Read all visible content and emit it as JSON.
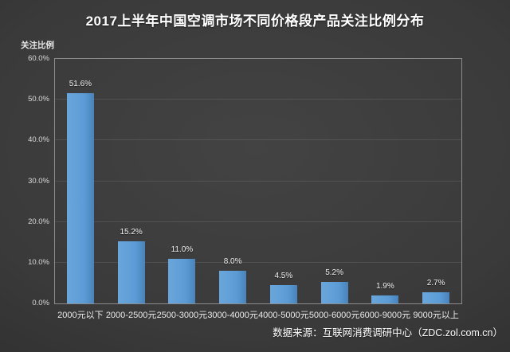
{
  "header": {
    "title": "2017上半年中国空调市场不同价格段产品关注比例分布"
  },
  "chart_data": {
    "type": "bar",
    "title": "2017上半年中国空调市场不同价格段产品关注比例分布",
    "ylabel": "关注比例",
    "xlabel": "",
    "categories": [
      "2000元以下",
      "2000-2500元",
      "2500-3000元",
      "3000-4000元",
      "4000-5000元",
      "5000-6000元",
      "6000-9000元",
      "9000元以上"
    ],
    "values": [
      51.6,
      15.2,
      11.0,
      8.0,
      4.5,
      5.2,
      1.9,
      2.7
    ],
    "value_labels": [
      "51.6%",
      "15.2%",
      "11.0%",
      "8.0%",
      "4.5%",
      "5.2%",
      "1.9%",
      "2.7%"
    ],
    "ylim": [
      0,
      60
    ],
    "ytick_step": 10,
    "ytick_labels": [
      "0.0%",
      "10.0%",
      "20.0%",
      "30.0%",
      "40.0%",
      "50.0%",
      "60.0%"
    ],
    "grid": true,
    "legend": "none",
    "bar_color": "#5B9BD5"
  },
  "footer": {
    "source": "数据来源：互联网消费调研中心（ZDC.zol.com.cn）"
  }
}
